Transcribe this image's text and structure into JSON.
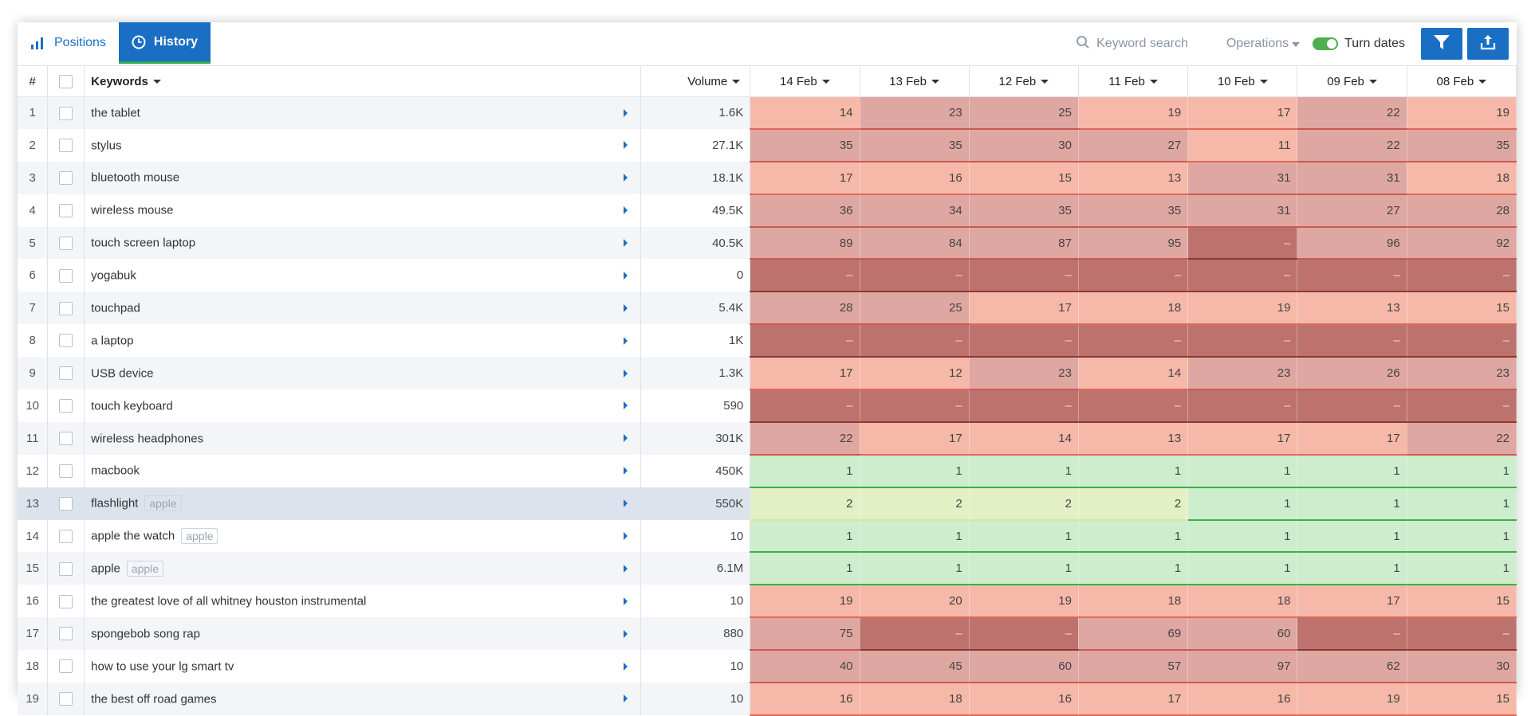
{
  "tabs": [
    {
      "label": "Positions",
      "icon": "bar-chart-icon",
      "active": false
    },
    {
      "label": "History",
      "icon": "clock-icon",
      "active": true
    }
  ],
  "toolbar": {
    "search_placeholder": "Keyword search",
    "operations_label": "Operations",
    "turn_dates_label": "Turn dates",
    "filter_icon": "filter-icon",
    "export_icon": "export-icon",
    "accent": "#1a6fc4",
    "toggle_color": "#4caf50"
  },
  "columns": {
    "num": "#",
    "keywords": "Keywords",
    "volume": "Volume",
    "dates": [
      "14 Feb",
      "13 Feb",
      "12 Feb",
      "11 Feb",
      "10 Feb",
      "09 Feb",
      "08 Feb"
    ]
  },
  "rows": [
    {
      "n": "1",
      "kw": "the tablet",
      "tag": "",
      "vol": "1.6K",
      "pos": [
        "14",
        "23",
        "25",
        "19",
        "17",
        "22",
        "19"
      ],
      "lvl": [
        "light",
        "mid",
        "mid",
        "light",
        "light",
        "mid",
        "light"
      ]
    },
    {
      "n": "2",
      "kw": "stylus",
      "tag": "",
      "vol": "27.1K",
      "pos": [
        "35",
        "35",
        "30",
        "27",
        "11",
        "22",
        "35"
      ],
      "lvl": [
        "mid",
        "mid",
        "mid",
        "mid",
        "light",
        "mid",
        "mid"
      ]
    },
    {
      "n": "3",
      "kw": "bluetooth mouse",
      "tag": "",
      "vol": "18.1K",
      "pos": [
        "17",
        "16",
        "15",
        "13",
        "31",
        "31",
        "18"
      ],
      "lvl": [
        "light",
        "light",
        "light",
        "light",
        "mid",
        "mid",
        "light"
      ]
    },
    {
      "n": "4",
      "kw": "wireless mouse",
      "tag": "",
      "vol": "49.5K",
      "pos": [
        "36",
        "34",
        "35",
        "35",
        "31",
        "27",
        "28"
      ],
      "lvl": [
        "mid",
        "mid",
        "mid",
        "mid",
        "mid",
        "mid",
        "mid"
      ]
    },
    {
      "n": "5",
      "kw": "touch screen laptop",
      "tag": "",
      "vol": "40.5K",
      "pos": [
        "89",
        "84",
        "87",
        "95",
        "–",
        "96",
        "92"
      ],
      "lvl": [
        "mid",
        "mid",
        "mid",
        "mid",
        "dark",
        "mid",
        "mid"
      ]
    },
    {
      "n": "6",
      "kw": "yogabuk",
      "tag": "",
      "vol": "0",
      "pos": [
        "–",
        "–",
        "–",
        "–",
        "–",
        "–",
        "–"
      ],
      "lvl": [
        "dark",
        "dark",
        "dark",
        "dark",
        "dark",
        "dark",
        "dark"
      ]
    },
    {
      "n": "7",
      "kw": "touchpad",
      "tag": "",
      "vol": "5.4K",
      "pos": [
        "28",
        "25",
        "17",
        "18",
        "19",
        "13",
        "15"
      ],
      "lvl": [
        "mid",
        "mid",
        "light",
        "light",
        "light",
        "light",
        "light"
      ]
    },
    {
      "n": "8",
      "kw": "a laptop",
      "tag": "",
      "vol": "1K",
      "pos": [
        "–",
        "–",
        "–",
        "–",
        "–",
        "–",
        "–"
      ],
      "lvl": [
        "dark",
        "dark",
        "dark",
        "dark",
        "dark",
        "dark",
        "dark"
      ]
    },
    {
      "n": "9",
      "kw": "USB device",
      "tag": "",
      "vol": "1.3K",
      "pos": [
        "17",
        "12",
        "23",
        "14",
        "23",
        "26",
        "23"
      ],
      "lvl": [
        "light",
        "light",
        "mid",
        "light",
        "mid",
        "mid",
        "mid"
      ]
    },
    {
      "n": "10",
      "kw": "touch keyboard",
      "tag": "",
      "vol": "590",
      "pos": [
        "–",
        "–",
        "–",
        "–",
        "–",
        "–",
        "–"
      ],
      "lvl": [
        "dark",
        "dark",
        "dark",
        "dark",
        "dark",
        "dark",
        "dark"
      ]
    },
    {
      "n": "11",
      "kw": "wireless headphones",
      "tag": "",
      "vol": "301K",
      "pos": [
        "22",
        "17",
        "14",
        "13",
        "17",
        "17",
        "22"
      ],
      "lvl": [
        "mid",
        "light",
        "light",
        "light",
        "light",
        "light",
        "mid"
      ]
    },
    {
      "n": "12",
      "kw": "macbook",
      "tag": "",
      "vol": "450K",
      "pos": [
        "1",
        "1",
        "1",
        "1",
        "1",
        "1",
        "1"
      ],
      "lvl": [
        "green",
        "green",
        "green",
        "green",
        "green",
        "green",
        "green"
      ]
    },
    {
      "n": "13",
      "kw": "flashlight",
      "tag": "apple",
      "vol": "550K",
      "pos": [
        "2",
        "2",
        "2",
        "2",
        "1",
        "1",
        "1"
      ],
      "lvl": [
        "lgreen",
        "lgreen",
        "lgreen",
        "lgreen",
        "green",
        "green",
        "green"
      ],
      "selected": true
    },
    {
      "n": "14",
      "kw": "apple the watch",
      "tag": "apple",
      "vol": "10",
      "pos": [
        "1",
        "1",
        "1",
        "1",
        "1",
        "1",
        "1"
      ],
      "lvl": [
        "green",
        "green",
        "green",
        "green",
        "green",
        "green",
        "green"
      ]
    },
    {
      "n": "15",
      "kw": "apple",
      "tag": "apple",
      "vol": "6.1M",
      "pos": [
        "1",
        "1",
        "1",
        "1",
        "1",
        "1",
        "1"
      ],
      "lvl": [
        "green",
        "green",
        "green",
        "green",
        "green",
        "green",
        "green"
      ]
    },
    {
      "n": "16",
      "kw": "the greatest love of all whitney houston instrumental",
      "tag": "",
      "vol": "10",
      "pos": [
        "19",
        "20",
        "19",
        "18",
        "18",
        "17",
        "15"
      ],
      "lvl": [
        "light",
        "light",
        "light",
        "light",
        "light",
        "light",
        "light"
      ]
    },
    {
      "n": "17",
      "kw": "spongebob song rap",
      "tag": "",
      "vol": "880",
      "pos": [
        "75",
        "–",
        "–",
        "69",
        "60",
        "–",
        "–"
      ],
      "lvl": [
        "mid",
        "dark",
        "dark",
        "mid",
        "mid",
        "dark",
        "dark"
      ]
    },
    {
      "n": "18",
      "kw": "how to use your lg smart tv",
      "tag": "",
      "vol": "10",
      "pos": [
        "40",
        "45",
        "60",
        "57",
        "97",
        "62",
        "30"
      ],
      "lvl": [
        "mid",
        "mid",
        "mid",
        "mid",
        "mid",
        "mid",
        "mid"
      ]
    },
    {
      "n": "19",
      "kw": "the best off road games",
      "tag": "",
      "vol": "10",
      "pos": [
        "16",
        "18",
        "16",
        "17",
        "16",
        "19",
        "15"
      ],
      "lvl": [
        "light",
        "light",
        "light",
        "light",
        "light",
        "light",
        "light"
      ]
    }
  ]
}
